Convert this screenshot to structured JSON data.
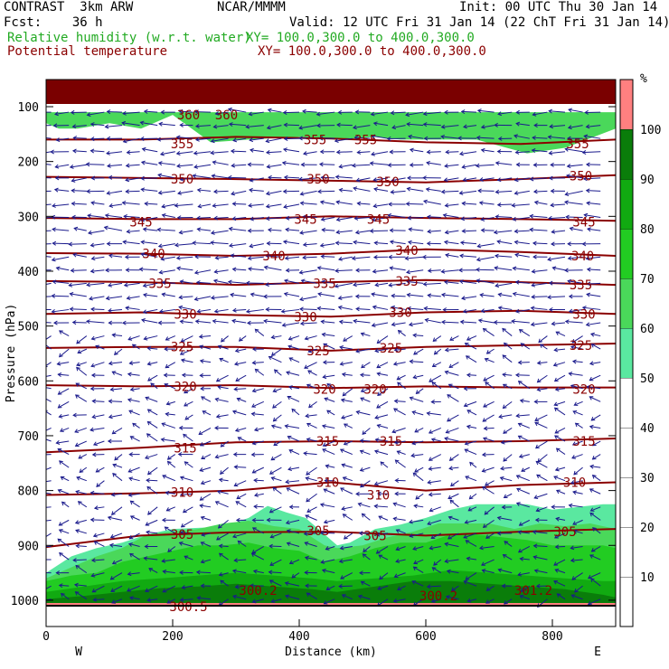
{
  "header": {
    "model": "CONTRAST  3km ARW",
    "org": "NCAR/MMMM",
    "init": "Init: 00 UTC Thu 30 Jan 14",
    "fcst": "Fcst:    36 h",
    "valid": "Valid: 12 UTC Fri 31 Jan 14 (22 ChT Fri 31 Jan 14)",
    "rh_label": "Relative humidity (w.r.t. water)",
    "rh_xy": "XY= 100.0,300.0 to 400.0,300.0",
    "theta_label": "Potential temperature",
    "theta_xy": "XY= 100.0,300.0 to 400.0,300.0"
  },
  "colors": {
    "rh_text": "#22aa22",
    "theta_text": "#8b0000",
    "contour": "#8b0000",
    "wind": "#1a1a8c",
    "rh_fills": [
      "#ffffff",
      "#ffffff",
      "#ffffff",
      "#ffffff",
      "#ffffff",
      "#5ae8a0",
      "#4ad85a",
      "#22cc22",
      "#11aa11",
      "#0a7d0a",
      "#ff8080"
    ]
  },
  "chart_data": {
    "type": "heatmap",
    "title": "",
    "xlabel": "Distance (km)",
    "ylabel": "Pressure (hPa)",
    "xlim": [
      0,
      900
    ],
    "ylim": [
      1010,
      50
    ],
    "x_ticks": [
      "0",
      "200",
      "400",
      "600",
      "800"
    ],
    "x_tick_values": [
      0,
      200,
      400,
      600,
      800
    ],
    "y_ticks": [
      "100",
      "200",
      "300",
      "400",
      "500",
      "600",
      "700",
      "800",
      "900",
      "1000"
    ],
    "y_tick_values": [
      100,
      200,
      300,
      400,
      500,
      600,
      700,
      800,
      900,
      1000
    ],
    "direction_labels": {
      "left": "W",
      "right": "E"
    },
    "colorbar": {
      "unit": "%",
      "labels": [
        "10",
        "20",
        "30",
        "40",
        "50",
        "60",
        "70",
        "80",
        "90",
        "100"
      ],
      "levels": [
        0,
        10,
        20,
        30,
        40,
        50,
        60,
        70,
        80,
        90,
        100,
        110
      ]
    },
    "contour_labels": [
      {
        "text": "360",
        "x": 225,
        "p": 115
      },
      {
        "text": "360",
        "x": 285,
        "p": 115
      },
      {
        "text": "355",
        "x": 215,
        "p": 168
      },
      {
        "text": "355",
        "x": 425,
        "p": 160
      },
      {
        "text": "355",
        "x": 505,
        "p": 160
      },
      {
        "text": "355",
        "x": 840,
        "p": 168
      },
      {
        "text": "350",
        "x": 215,
        "p": 232
      },
      {
        "text": "350",
        "x": 430,
        "p": 232
      },
      {
        "text": "350",
        "x": 540,
        "p": 237
      },
      {
        "text": "350",
        "x": 845,
        "p": 226
      },
      {
        "text": "345",
        "x": 150,
        "p": 310
      },
      {
        "text": "345",
        "x": 410,
        "p": 305
      },
      {
        "text": "345",
        "x": 525,
        "p": 305
      },
      {
        "text": "345",
        "x": 850,
        "p": 310
      },
      {
        "text": "340",
        "x": 170,
        "p": 368
      },
      {
        "text": "340",
        "x": 360,
        "p": 372
      },
      {
        "text": "340",
        "x": 570,
        "p": 362
      },
      {
        "text": "340",
        "x": 848,
        "p": 372
      },
      {
        "text": "335",
        "x": 180,
        "p": 422
      },
      {
        "text": "335",
        "x": 440,
        "p": 422
      },
      {
        "text": "335",
        "x": 570,
        "p": 418
      },
      {
        "text": "335",
        "x": 845,
        "p": 425
      },
      {
        "text": "330",
        "x": 220,
        "p": 478
      },
      {
        "text": "330",
        "x": 410,
        "p": 483
      },
      {
        "text": "330",
        "x": 560,
        "p": 475
      },
      {
        "text": "330",
        "x": 850,
        "p": 478
      },
      {
        "text": "325",
        "x": 215,
        "p": 538
      },
      {
        "text": "325",
        "x": 430,
        "p": 545
      },
      {
        "text": "325",
        "x": 545,
        "p": 540
      },
      {
        "text": "325",
        "x": 845,
        "p": 535
      },
      {
        "text": "320",
        "x": 220,
        "p": 610
      },
      {
        "text": "320",
        "x": 440,
        "p": 615
      },
      {
        "text": "320",
        "x": 520,
        "p": 615
      },
      {
        "text": "320",
        "x": 850,
        "p": 615
      },
      {
        "text": "315",
        "x": 220,
        "p": 722
      },
      {
        "text": "315",
        "x": 445,
        "p": 710
      },
      {
        "text": "315",
        "x": 545,
        "p": 710
      },
      {
        "text": "315",
        "x": 850,
        "p": 710
      },
      {
        "text": "310",
        "x": 215,
        "p": 803
      },
      {
        "text": "310",
        "x": 445,
        "p": 785
      },
      {
        "text": "310",
        "x": 525,
        "p": 808
      },
      {
        "text": "310",
        "x": 835,
        "p": 785
      },
      {
        "text": "305",
        "x": 215,
        "p": 880
      },
      {
        "text": "305",
        "x": 430,
        "p": 873
      },
      {
        "text": "305",
        "x": 520,
        "p": 882
      },
      {
        "text": "305",
        "x": 820,
        "p": 875
      },
      {
        "text": "300.2",
        "x": 335,
        "p": 982
      },
      {
        "text": "300.2",
        "x": 620,
        "p": 992
      },
      {
        "text": "301.2",
        "x": 770,
        "p": 982
      },
      {
        "text": "300.5",
        "x": 225,
        "p": 1012
      }
    ],
    "theta_contours": [
      {
        "level": 355,
        "x": [
          0,
          150,
          300,
          450,
          600,
          750,
          900
        ],
        "p": [
          160,
          160,
          155,
          158,
          165,
          168,
          160
        ]
      },
      {
        "level": 350,
        "x": [
          0,
          150,
          300,
          450,
          600,
          750,
          900
        ],
        "p": [
          228,
          230,
          232,
          235,
          238,
          232,
          225
        ]
      },
      {
        "level": 345,
        "x": [
          0,
          150,
          300,
          450,
          600,
          750,
          900
        ],
        "p": [
          303,
          305,
          305,
          300,
          303,
          305,
          308
        ]
      },
      {
        "level": 340,
        "x": [
          0,
          150,
          300,
          450,
          600,
          750,
          900
        ],
        "p": [
          367,
          368,
          372,
          368,
          360,
          365,
          372
        ]
      },
      {
        "level": 335,
        "x": [
          0,
          150,
          300,
          450,
          600,
          750,
          900
        ],
        "p": [
          418,
          420,
          425,
          420,
          416,
          420,
          425
        ]
      },
      {
        "level": 330,
        "x": [
          0,
          150,
          300,
          450,
          600,
          750,
          900
        ],
        "p": [
          478,
          475,
          480,
          483,
          475,
          472,
          478
        ]
      },
      {
        "level": 325,
        "x": [
          0,
          150,
          300,
          450,
          600,
          750,
          900
        ],
        "p": [
          540,
          538,
          538,
          545,
          538,
          535,
          532
        ]
      },
      {
        "level": 320,
        "x": [
          0,
          150,
          300,
          450,
          600,
          750,
          900
        ],
        "p": [
          608,
          610,
          608,
          613,
          610,
          612,
          612
        ]
      },
      {
        "level": 315,
        "x": [
          0,
          150,
          300,
          450,
          600,
          750,
          900
        ],
        "p": [
          730,
          722,
          712,
          710,
          712,
          710,
          705
        ]
      },
      {
        "level": 310,
        "x": [
          0,
          150,
          300,
          450,
          600,
          750,
          900
        ],
        "p": [
          808,
          805,
          800,
          785,
          800,
          790,
          785
        ]
      },
      {
        "level": 305,
        "x": [
          0,
          150,
          300,
          450,
          600,
          750,
          900
        ],
        "p": [
          903,
          882,
          876,
          875,
          882,
          875,
          870
        ]
      }
    ],
    "rh_regions": [
      {
        "level": 100,
        "x": [
          0,
          900
        ],
        "p_top": [
          50,
          50
        ],
        "p_bot": [
          95,
          95
        ]
      },
      {
        "level": 60,
        "x": [
          0,
          20,
          50,
          100,
          150,
          200,
          260,
          320,
          400,
          460,
          520,
          560,
          620,
          680,
          760,
          820,
          900
        ],
        "p_top": [
          110,
          110,
          110,
          110,
          110,
          110,
          110,
          110,
          110,
          110,
          110,
          110,
          110,
          110,
          110,
          110,
          110
        ],
        "p_bot": [
          130,
          140,
          140,
          130,
          140,
          115,
          165,
          160,
          155,
          160,
          155,
          160,
          160,
          160,
          185,
          175,
          140
        ]
      },
      {
        "level": 50,
        "x": [
          0,
          40,
          80,
          120,
          160,
          200,
          240,
          280,
          320,
          350,
          380,
          410,
          440,
          460,
          480,
          520,
          560,
          600,
          640,
          680,
          720,
          760,
          800,
          840,
          880,
          900
        ],
        "p_top": [
          950,
          920,
          905,
          895,
          880,
          870,
          868,
          866,
          850,
          828,
          840,
          850,
          880,
          900,
          895,
          870,
          862,
          850,
          835,
          825,
          825,
          825,
          835,
          830,
          825,
          825
        ],
        "p_bot": [
          1010,
          1010,
          1010,
          1010,
          1010,
          1010,
          1010,
          1010,
          1010,
          1010,
          1010,
          1010,
          1010,
          1010,
          1010,
          1010,
          1010,
          1010,
          1010,
          1010,
          1010,
          1010,
          1010,
          1010,
          1010,
          1010
        ]
      },
      {
        "level": 60,
        "x": [
          0,
          40,
          80,
          120,
          160,
          200,
          240,
          280,
          320,
          360,
          400,
          440,
          460,
          500,
          540,
          580,
          620,
          660,
          700,
          740,
          780,
          820,
          860,
          900
        ],
        "p_top": [
          960,
          940,
          920,
          905,
          880,
          875,
          870,
          860,
          855,
          865,
          870,
          900,
          905,
          900,
          885,
          875,
          860,
          860,
          860,
          870,
          860,
          865,
          860,
          870
        ],
        "p_bot": [
          1010,
          1010,
          1010,
          1010,
          1010,
          1010,
          1010,
          1010,
          1010,
          1010,
          1010,
          1010,
          1010,
          1010,
          1010,
          1010,
          1010,
          1010,
          1010,
          1010,
          1010,
          1010,
          1010,
          1010
        ]
      },
      {
        "level": 70,
        "x": [
          0,
          40,
          80,
          120,
          160,
          200,
          240,
          280,
          320,
          360,
          400,
          440,
          480,
          520,
          560,
          600,
          640,
          680,
          720,
          760,
          800,
          840,
          880,
          900
        ],
        "p_top": [
          965,
          955,
          950,
          930,
          920,
          910,
          900,
          900,
          895,
          905,
          910,
          930,
          920,
          905,
          895,
          895,
          880,
          880,
          885,
          890,
          900,
          900,
          900,
          905
        ],
        "p_bot": [
          1010,
          1010,
          1010,
          1010,
          1010,
          1010,
          1010,
          1010,
          1010,
          1010,
          1010,
          1010,
          1010,
          1010,
          1010,
          1010,
          1010,
          1010,
          1010,
          1010,
          1010,
          1010,
          1010,
          1010
        ]
      },
      {
        "level": 80,
        "x": [
          0,
          60,
          120,
          180,
          240,
          300,
          360,
          420,
          460,
          520,
          580,
          640,
          700,
          760,
          820,
          880,
          900
        ],
        "p_top": [
          985,
          975,
          965,
          960,
          955,
          950,
          955,
          960,
          965,
          960,
          955,
          945,
          950,
          955,
          960,
          965,
          965
        ],
        "p_bot": [
          1010,
          1010,
          1010,
          1010,
          1010,
          1010,
          1010,
          1010,
          1010,
          1010,
          1010,
          1010,
          1010,
          1010,
          1010,
          1010,
          1010
        ]
      },
      {
        "level": 90,
        "x": [
          0,
          60,
          120,
          180,
          240,
          300,
          360,
          420,
          460,
          520,
          580,
          640,
          700,
          760,
          820,
          880,
          900
        ],
        "p_top": [
          998,
          992,
          985,
          978,
          975,
          970,
          975,
          980,
          985,
          975,
          965,
          965,
          970,
          975,
          980,
          990,
          995
        ],
        "p_bot": [
          1010,
          1010,
          1010,
          1010,
          1010,
          1010,
          1010,
          1010,
          1010,
          1010,
          1010,
          1010,
          1010,
          1010,
          1010,
          1010,
          1010
        ]
      },
      {
        "level": 100,
        "x": [
          0,
          900
        ],
        "p_top": [
          1005,
          1005
        ],
        "p_bot": [
          1010,
          1010
        ]
      }
    ],
    "wind_field": "vectors"
  }
}
